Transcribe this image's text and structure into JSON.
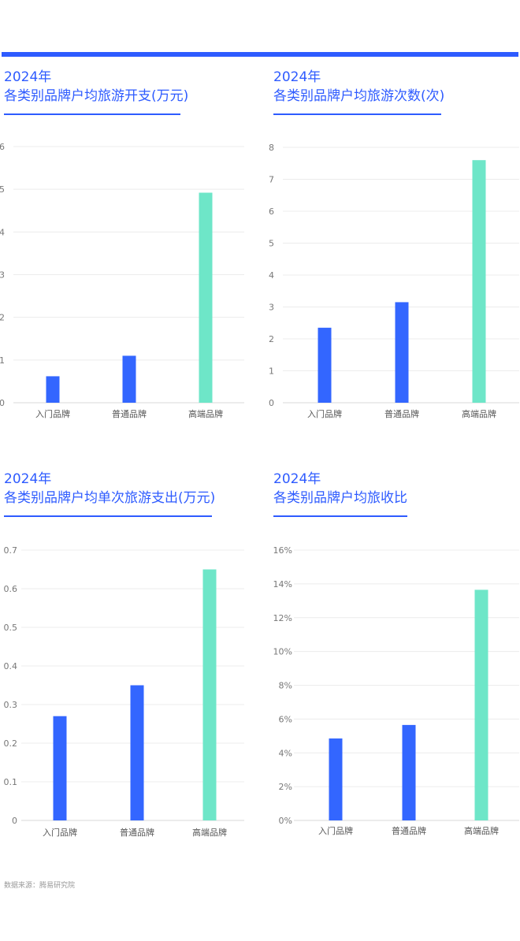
{
  "colors": {
    "accent": "#2e5bff",
    "bar_regular": "#3366ff",
    "bar_premium": "#6ee6c8"
  },
  "source": "数据来源：腾易研究院",
  "chart_data": [
    {
      "type": "bar",
      "title_line1": "2024年",
      "title_line2": "各类别品牌户均旅游开支(万元)",
      "categories": [
        "入门品牌",
        "普通品牌",
        "高端品牌"
      ],
      "values": [
        0.62,
        1.1,
        4.92
      ],
      "ylim": [
        0,
        6
      ],
      "yticks": [
        "0",
        "1",
        "2",
        "3",
        "4",
        "5",
        "6"
      ],
      "ytick_values": [
        0,
        1,
        2,
        3,
        4,
        5,
        6
      ]
    },
    {
      "type": "bar",
      "title_line1": "2024年",
      "title_line2": "各类别品牌户均旅游次数(次)",
      "categories": [
        "入门品牌",
        "普通品牌",
        "高端品牌"
      ],
      "values": [
        2.35,
        3.15,
        7.6
      ],
      "ylim": [
        0,
        8
      ],
      "yticks": [
        "0",
        "1",
        "2",
        "3",
        "4",
        "5",
        "6",
        "7",
        "8"
      ],
      "ytick_values": [
        0,
        1,
        2,
        3,
        4,
        5,
        6,
        7,
        8
      ]
    },
    {
      "type": "bar",
      "title_line1": "2024年",
      "title_line2": "各类别品牌户均单次旅游支出(万元)",
      "categories": [
        "入门品牌",
        "普通品牌",
        "高端品牌"
      ],
      "values": [
        0.27,
        0.35,
        0.65
      ],
      "ylim": [
        0,
        0.7
      ],
      "yticks": [
        "0",
        "0.1",
        "0.2",
        "0.3",
        "0.4",
        "0.5",
        "0.6",
        "0.7"
      ],
      "ytick_values": [
        0,
        0.1,
        0.2,
        0.3,
        0.4,
        0.5,
        0.6,
        0.7
      ]
    },
    {
      "type": "bar",
      "title_line1": "2024年",
      "title_line2": "各类别品牌户均旅收比",
      "categories": [
        "入门品牌",
        "普通品牌",
        "高端品牌"
      ],
      "values": [
        4.85,
        5.65,
        13.65
      ],
      "unit": "%",
      "ylim": [
        0,
        16
      ],
      "yticks": [
        "0%",
        "2%",
        "4%",
        "6%",
        "8%",
        "10%",
        "12%",
        "14%",
        "16%"
      ],
      "ytick_values": [
        0,
        2,
        4,
        6,
        8,
        10,
        12,
        14,
        16
      ]
    }
  ]
}
